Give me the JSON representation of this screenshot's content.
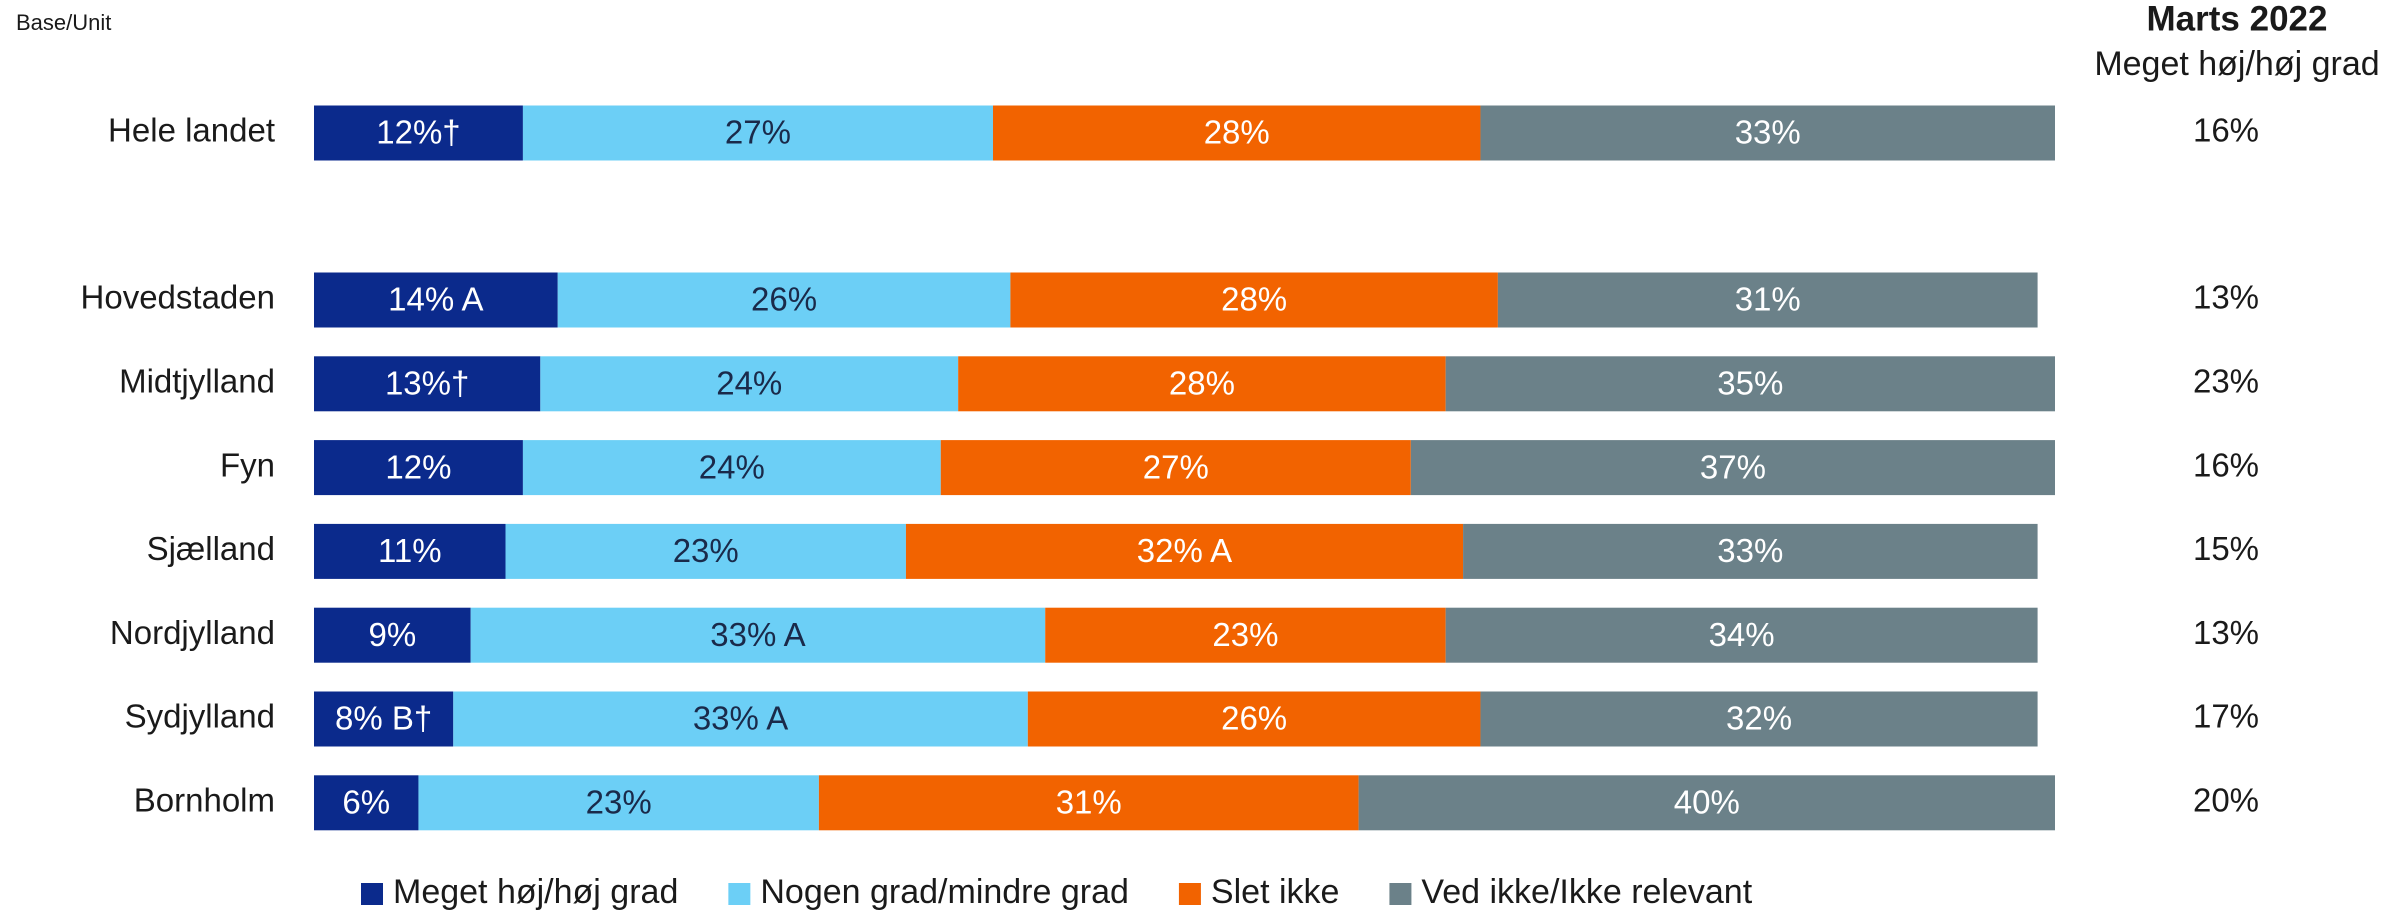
{
  "chart_data": {
    "type": "stacked_barh",
    "corner_label": "Base/Unit",
    "categories": [
      "Hele landet",
      "Hovedstaden",
      "Midtjylland",
      "Fyn",
      "Sjælland",
      "Nordjylland",
      "Sydjylland",
      "Bornholm"
    ],
    "xlim": [
      0,
      100
    ],
    "series": [
      {
        "name": "Meget høj/høj grad",
        "color": "#0b2a8c",
        "values": [
          12,
          14,
          13,
          12,
          11,
          9,
          8,
          6
        ],
        "value_labels": [
          "12%†",
          "14% A",
          "13%†",
          "12%",
          "11%",
          "9%",
          "8% B†",
          "6%"
        ]
      },
      {
        "name": "Nogen grad/mindre grad",
        "color": "#6ccff6",
        "values": [
          27,
          26,
          24,
          24,
          23,
          33,
          33,
          23
        ],
        "value_labels": [
          "27%",
          "26%",
          "24%",
          "24%",
          "23%",
          "33% A",
          "33% A",
          "23%"
        ]
      },
      {
        "name": "Slet ikke",
        "color": "#f26300",
        "values": [
          28,
          28,
          28,
          27,
          32,
          23,
          26,
          31
        ],
        "value_labels": [
          "28%",
          "28%",
          "28%",
          "27%",
          "32% A",
          "23%",
          "26%",
          "31%"
        ]
      },
      {
        "name": "Ved ikke/Ikke relevant",
        "color": "#6b8189",
        "values": [
          33,
          31,
          35,
          37,
          33,
          34,
          32,
          40
        ],
        "value_labels": [
          "33%",
          "31%",
          "35%",
          "37%",
          "33%",
          "34%",
          "32%",
          "40%"
        ]
      }
    ],
    "side_column": {
      "title": "Marts 2022",
      "subtitle": "Meget høj/høj grad",
      "values": [
        16,
        13,
        23,
        16,
        15,
        13,
        17,
        20
      ],
      "value_labels": [
        "16%",
        "13%",
        "23%",
        "16%",
        "15%",
        "13%",
        "17%",
        "20%"
      ]
    }
  }
}
